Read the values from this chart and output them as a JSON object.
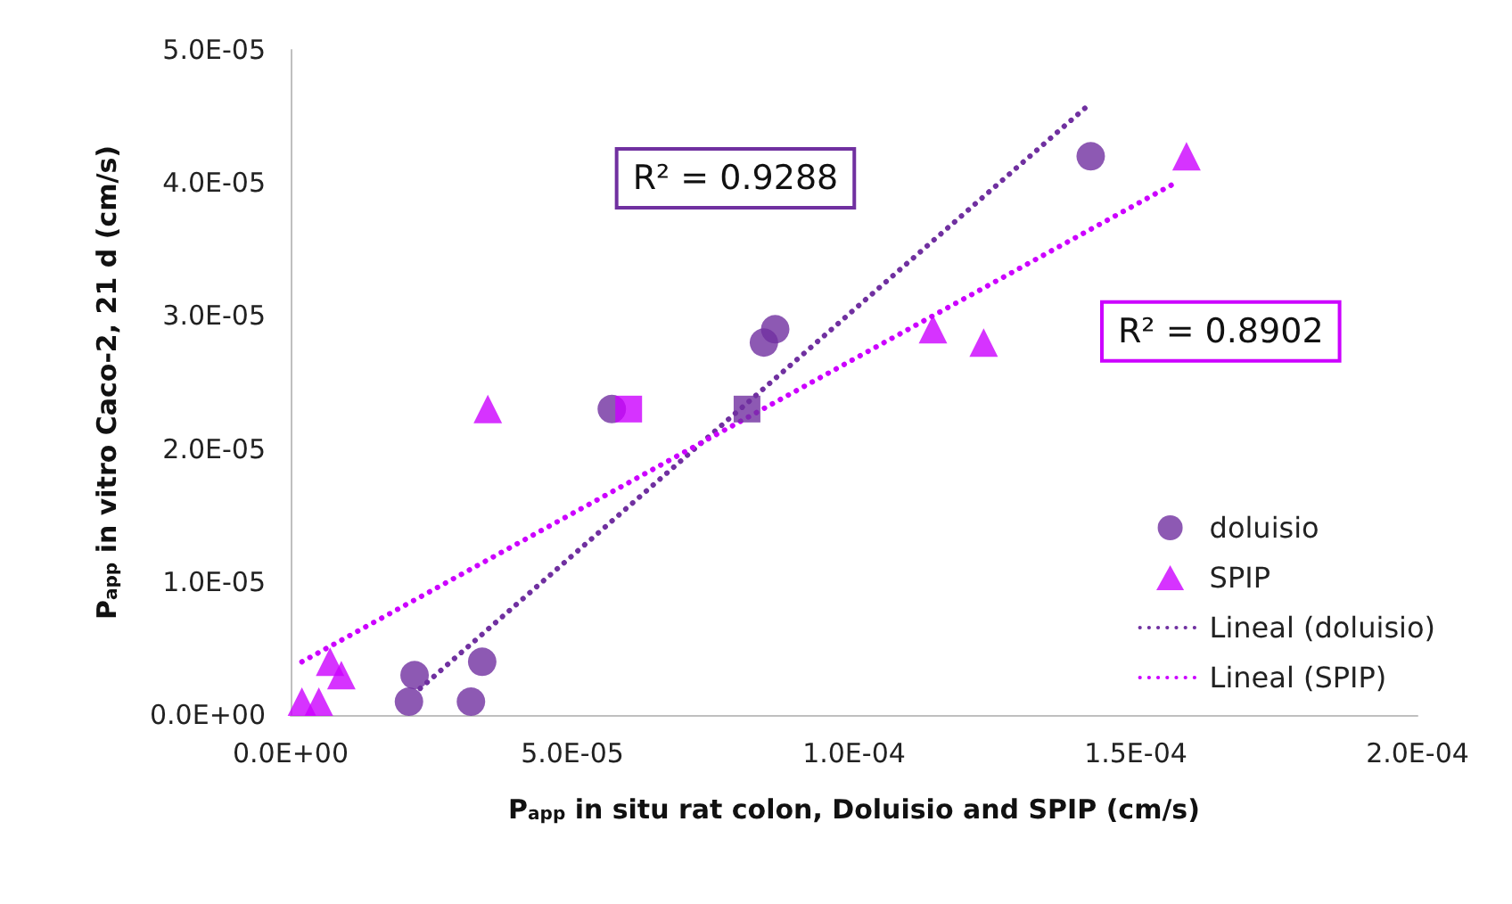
{
  "chart_data": {
    "type": "scatter",
    "xlabel": "P$_{app}$ in situ rat colon, Doluisio and SPIP (cm/s)",
    "ylabel": "P$_{app}$ in vitro Caco-2, 21 d (cm/s)",
    "xlim": [
      0,
      0.0002
    ],
    "xticks": [
      {
        "value": 0,
        "label": "0.0E+00"
      },
      {
        "value": 5e-05,
        "label": "5.0E-05"
      },
      {
        "value": 0.0001,
        "label": "1.0E-04"
      },
      {
        "value": 0.00015,
        "label": "1.5E-04"
      },
      {
        "value": 0.0002,
        "label": "2.0E-04"
      }
    ],
    "ylim": [
      0,
      5e-05
    ],
    "yticks": [
      {
        "value": 0,
        "label": "0.0E+00"
      },
      {
        "value": 1e-05,
        "label": "1.0E-05"
      },
      {
        "value": 2e-05,
        "label": "2.0E-05"
      },
      {
        "value": 3e-05,
        "label": "3.0E-05"
      },
      {
        "value": 4e-05,
        "label": "4.0E-05"
      },
      {
        "value": 5e-05,
        "label": "5.0E-05"
      }
    ],
    "legend": "right",
    "series": [
      {
        "name": "doluisio",
        "marker": "circle",
        "color": "#7030a0",
        "x": [
          2.2e-05,
          2.1e-05,
          3.4e-05,
          3.2e-05,
          5.7e-05,
          8.4e-05,
          8.6e-05,
          0.000142
        ],
        "values": [
          3e-06,
          1e-06,
          4e-06,
          1e-06,
          2.3e-05,
          2.8e-05,
          2.9e-05,
          4.2e-05
        ]
      },
      {
        "name": "SPIP",
        "marker": "triangle",
        "color": "#cc00ff",
        "x": [
          2e-06,
          5e-06,
          7e-06,
          9e-06,
          3.5e-05,
          0.000114,
          0.000123,
          0.000159
        ],
        "values": [
          1e-06,
          1e-06,
          4e-06,
          3e-06,
          2.3e-05,
          2.9e-05,
          2.8e-05,
          4.2e-05
        ]
      },
      {
        "marker": "square",
        "color": "#cc00ff",
        "x": [
          6e-05
        ],
        "values": [
          2.3e-05
        ]
      },
      {
        "marker": "square",
        "color": "#7030a0",
        "x": [
          8.1e-05
        ],
        "values": [
          2.3e-05
        ]
      },
      {
        "name": "Lineal (doluisio)",
        "type": "line",
        "marker": "none",
        "line_style": "dotted",
        "color": "#7030a0",
        "x": [
          2.3e-05,
          0.000142
        ],
        "values": [
          2e-06,
          4.6e-05
        ]
      },
      {
        "name": "Lineal (SPIP)",
        "type": "line",
        "marker": "none",
        "line_style": "dotted",
        "color": "#cc00ff",
        "x": [
          2e-06,
          0.000157
        ],
        "values": [
          4e-06,
          4e-05
        ]
      }
    ],
    "annotations": [
      "R² = 0.9288",
      "R² = 0.8902"
    ]
  }
}
